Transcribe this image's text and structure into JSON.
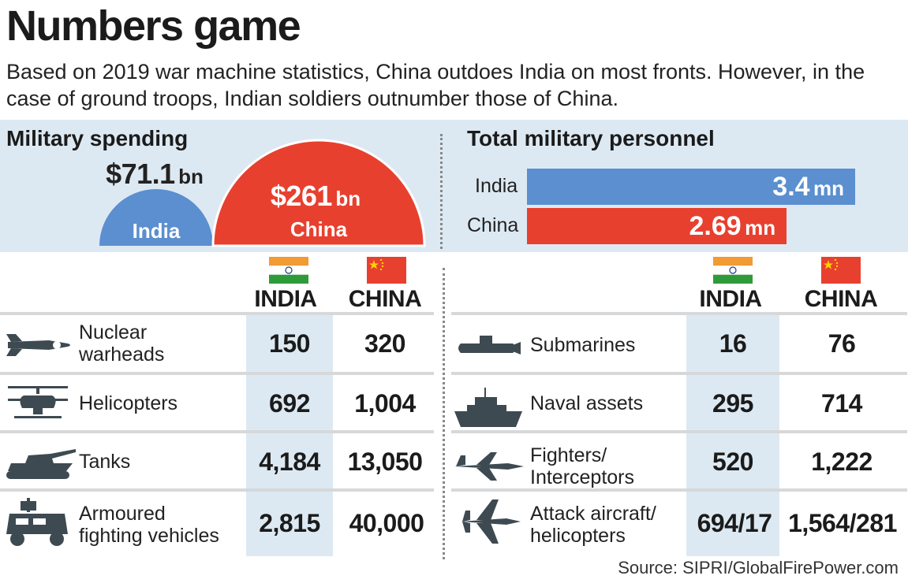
{
  "title": "Numbers game",
  "subtitle": "Based on 2019 war machine statistics, China outdoes India on most fronts. However, in the case of ground troops, Indian soldiers outnumber those of China.",
  "colors": {
    "india": "#5b8fcf",
    "china": "#e8402f",
    "band": "#dde9f2",
    "row": "#eceeef",
    "icon": "#3e4a52"
  },
  "spending": {
    "heading": "Military spending",
    "india": {
      "country": "India",
      "value": "$71.1",
      "unit": "bn"
    },
    "china": {
      "country": "China",
      "value": "$261",
      "unit": "bn"
    }
  },
  "personnel": {
    "heading": "Total military personnel",
    "max": 3.4,
    "india": {
      "country": "India",
      "value": 3.4,
      "display": "3.4",
      "unit": "mn"
    },
    "china": {
      "country": "China",
      "value": 2.69,
      "display": "2.69",
      "unit": "mn"
    }
  },
  "columns": {
    "india": "INDIA",
    "china": "CHINA"
  },
  "left_rows": [
    {
      "label": "Nuclear\nwarheads",
      "icon": "missile-icon",
      "india": "150",
      "china": "320"
    },
    {
      "label": "Helicopters",
      "icon": "helicopter-icon",
      "india": "692",
      "china": "1,004"
    },
    {
      "label": "Tanks",
      "icon": "tank-icon",
      "india": "4,184",
      "china": "13,050"
    },
    {
      "label": "Armoured\nfighting vehicles",
      "icon": "armoured-vehicle-icon",
      "india": "2,815",
      "china": "40,000"
    }
  ],
  "right_rows": [
    {
      "label": "Submarines",
      "icon": "submarine-icon",
      "india": "16",
      "china": "76"
    },
    {
      "label": "Naval assets",
      "icon": "warship-icon",
      "india": "295",
      "china": "714"
    },
    {
      "label": "Fighters/\nInterceptors",
      "icon": "fighter-jet-icon",
      "india": "520",
      "china": "1,222"
    },
    {
      "label": "Attack aircraft/\nhelicopters",
      "icon": "attack-aircraft-icon",
      "india": "694/17",
      "china": "1,564/281"
    }
  ],
  "chart_data": [
    {
      "type": "bar",
      "title": "Military spending",
      "categories": [
        "India",
        "China"
      ],
      "values": [
        71.1,
        261
      ]
    },
    {
      "type": "bar",
      "title": "Total military personnel",
      "categories": [
        "India",
        "China"
      ],
      "values": [
        3.4,
        2.69
      ]
    },
    {
      "type": "table",
      "columns": [
        "INDIA",
        "CHINA"
      ],
      "rows": [
        {
          "label": "Nuclear warheads",
          "india": 150,
          "china": 320
        },
        {
          "label": "Helicopters",
          "india": 692,
          "china": 1004
        },
        {
          "label": "Tanks",
          "india": 4184,
          "china": 13050
        },
        {
          "label": "Armoured fighting vehicles",
          "india": 2815,
          "china": 40000
        },
        {
          "label": "Submarines",
          "india": 16,
          "china": 76
        },
        {
          "label": "Naval assets",
          "india": 295,
          "china": 714
        },
        {
          "label": "Fighters/Interceptors",
          "india": 520,
          "china": 1222
        },
        {
          "label": "Attack aircraft/helicopters",
          "india": "694/17",
          "china": "1,564/281"
        }
      ]
    }
  ],
  "source": "Source: SIPRI/GlobalFirePower.com"
}
